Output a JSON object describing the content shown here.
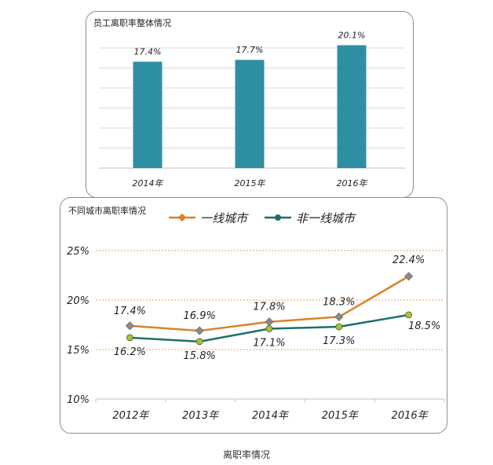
{
  "caption": "离职率情况",
  "chart_data": [
    {
      "type": "bar",
      "title": "员工离职率整体情况",
      "categories": [
        "2014年",
        "2015年",
        "2016年"
      ],
      "values": [
        17.4,
        17.7,
        20.1
      ],
      "data_labels": [
        "17.4%",
        "17.7%",
        "20.1%"
      ],
      "color": "#2e8fa3",
      "grid": true
    },
    {
      "type": "line",
      "title": "不同城市离职率情况",
      "categories": [
        "2012年",
        "2013年",
        "2014年",
        "2015年",
        "2016年"
      ],
      "ylim": [
        10,
        25
      ],
      "yticks": [
        "10%",
        "15%",
        "20%",
        "25%"
      ],
      "legend_position": "top",
      "grid": true,
      "series": [
        {
          "name": "一线城市",
          "values": [
            17.4,
            16.9,
            17.8,
            18.3,
            22.4
          ],
          "labels": [
            "17.4%",
            "16.9%",
            "17.8%",
            "18.3%",
            "22.4%"
          ],
          "color": "#d9822b",
          "marker_color": "#8a8a8a",
          "marker": "diamond"
        },
        {
          "name": "非一线城市",
          "values": [
            16.2,
            15.8,
            17.1,
            17.3,
            18.5
          ],
          "labels": [
            "16.2%",
            "15.8%",
            "17.1%",
            "17.3%",
            "18.5%"
          ],
          "color": "#1e6f6a",
          "marker_color": "#a8c236",
          "marker": "circle"
        }
      ]
    }
  ]
}
